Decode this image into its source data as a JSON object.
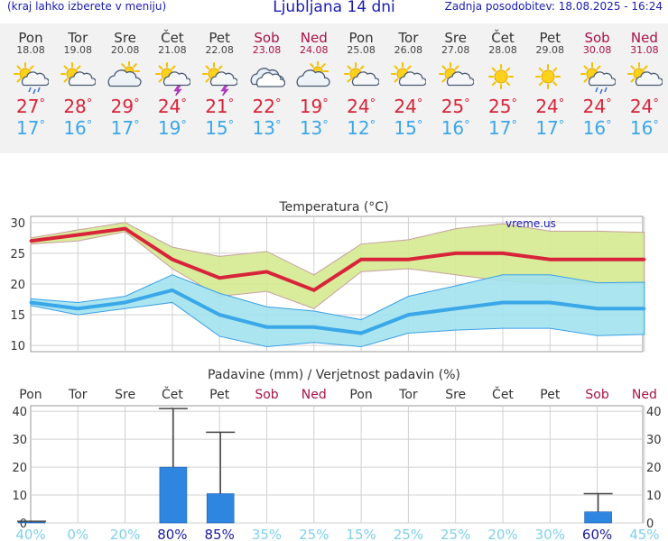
{
  "header": {
    "note": "(kraj lahko izberete v meniju)",
    "title": "Ljubljana 14 dni",
    "last_update": "Zadnja posodobitev: 18.08.2025 - 16:24"
  },
  "degree_symbol": "°",
  "days": [
    {
      "name": "Pon",
      "date": "18.08",
      "weekend": false,
      "icon": "sun-cloud-rain-icon",
      "tmax": 27,
      "tmin": 17
    },
    {
      "name": "Tor",
      "date": "19.08",
      "weekend": false,
      "icon": "sun-cloud-icon",
      "tmax": 28,
      "tmin": 16
    },
    {
      "name": "Sre",
      "date": "20.08",
      "weekend": false,
      "icon": "cloud-sun-icon",
      "tmax": 29,
      "tmin": 17
    },
    {
      "name": "Čet",
      "date": "21.08",
      "weekend": false,
      "icon": "sun-cloud-storm-icon",
      "tmax": 24,
      "tmin": 19
    },
    {
      "name": "Pet",
      "date": "22.08",
      "weekend": false,
      "icon": "sun-cloud-storm-icon",
      "tmax": 21,
      "tmin": 15
    },
    {
      "name": "Sob",
      "date": "23.08",
      "weekend": true,
      "icon": "cloud-icon",
      "tmax": 22,
      "tmin": 13
    },
    {
      "name": "Ned",
      "date": "24.08",
      "weekend": true,
      "icon": "cloud-sun-icon",
      "tmax": 19,
      "tmin": 13
    },
    {
      "name": "Pon",
      "date": "25.08",
      "weekend": false,
      "icon": "sun-cloud-icon",
      "tmax": 24,
      "tmin": 12
    },
    {
      "name": "Tor",
      "date": "26.08",
      "weekend": false,
      "icon": "sun-cloud-icon",
      "tmax": 24,
      "tmin": 15
    },
    {
      "name": "Sre",
      "date": "27.08",
      "weekend": false,
      "icon": "sun-cloud-icon",
      "tmax": 25,
      "tmin": 16
    },
    {
      "name": "Čet",
      "date": "28.08",
      "weekend": false,
      "icon": "sun-icon",
      "tmax": 25,
      "tmin": 17
    },
    {
      "name": "Pet",
      "date": "29.08",
      "weekend": false,
      "icon": "sun-icon",
      "tmax": 24,
      "tmin": 17
    },
    {
      "name": "Sob",
      "date": "30.08",
      "weekend": true,
      "icon": "sun-cloud-rain-icon",
      "tmax": 24,
      "tmin": 16
    },
    {
      "name": "Ned",
      "date": "31.08",
      "weekend": true,
      "icon": "sun-cloud-icon",
      "tmax": 24,
      "tmin": 16
    }
  ],
  "colors": {
    "tmax": "#d8243a",
    "tmin": "#3aa7e8",
    "weekend": "#aa1144",
    "band_max": "#d4ea90",
    "band_min": "#a2e2ee",
    "bar": "#2e86e0",
    "prob_high": "#1b1b9a",
    "prob_low": "#7fd0ee"
  },
  "chart_data": [
    {
      "type": "line",
      "title": "Temperatura (°C)",
      "watermark": "vreme.us",
      "categories": [
        "18.08",
        "19.08",
        "20.08",
        "21.08",
        "22.08",
        "23.08",
        "24.08",
        "25.08",
        "26.08",
        "27.08",
        "28.08",
        "29.08",
        "30.08",
        "31.08"
      ],
      "ylim": [
        9,
        31
      ],
      "yticks": [
        10,
        15,
        20,
        25,
        30
      ],
      "grid": true,
      "series": [
        {
          "role": "max",
          "values": [
            27,
            28,
            29,
            24,
            21,
            22,
            19,
            24,
            24,
            25,
            25,
            24,
            24,
            24
          ],
          "band_low": [
            26.5,
            27,
            28.5,
            22.5,
            18,
            18.8,
            16,
            22,
            22.5,
            21.5,
            20.5,
            20,
            20,
            20
          ],
          "band_high": [
            27.5,
            28.8,
            30,
            26,
            24.5,
            25.3,
            21.5,
            26.5,
            27.2,
            29,
            29.8,
            28.6,
            28.6,
            28.4
          ]
        },
        {
          "role": "min",
          "values": [
            17,
            16,
            17,
            19,
            15,
            13,
            13,
            12,
            15,
            16,
            17,
            17,
            16,
            16
          ],
          "band_low": [
            16.5,
            15,
            16,
            17,
            11.5,
            9.8,
            10.5,
            9.8,
            12,
            12.5,
            12.8,
            12.8,
            11.6,
            11.8
          ],
          "band_high": [
            17.6,
            17,
            18,
            21.5,
            18.5,
            16.3,
            15.6,
            14.2,
            18,
            19.7,
            21.5,
            21.5,
            20.2,
            20.3
          ]
        }
      ]
    },
    {
      "type": "bar",
      "title": "Padavine (mm) / Verjetnost padavin (%)",
      "categories": [
        "Pon",
        "Tor",
        "Sre",
        "Čet",
        "Pet",
        "Sob",
        "Ned",
        "Pon",
        "Tor",
        "Sre",
        "Čet",
        "Pet",
        "Sob",
        "Ned"
      ],
      "weekend": [
        false,
        false,
        false,
        false,
        false,
        true,
        true,
        false,
        false,
        false,
        false,
        false,
        true,
        true
      ],
      "ylim": [
        0,
        42
      ],
      "yticks": [
        0,
        10,
        20,
        30,
        40
      ],
      "values": [
        0.3,
        0,
        0,
        20,
        10.5,
        0,
        0,
        0,
        0,
        0,
        0,
        0,
        4,
        0
      ],
      "error_high": [
        0.6,
        0,
        0,
        41,
        32.5,
        0,
        0,
        0,
        0,
        0,
        0,
        0,
        10.5,
        0
      ],
      "probability": [
        "40%",
        "0%",
        "20%",
        "80%",
        "85%",
        "35%",
        "25%",
        "15%",
        "25%",
        "25%",
        "20%",
        "30%",
        "60%",
        "45%"
      ],
      "probability_values": [
        40,
        0,
        20,
        80,
        85,
        35,
        25,
        15,
        25,
        25,
        20,
        30,
        60,
        45
      ]
    }
  ]
}
